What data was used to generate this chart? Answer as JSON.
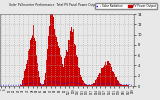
{
  "title": "Solar PV/Inverter Performance  Total PV Panel Power Output & Solar Radiation",
  "bg_color": "#e8e8e8",
  "plot_bg": "#e8e8e8",
  "grid_color": "#aaaaaa",
  "bar_color": "#cc0000",
  "line_color": "#0000ff",
  "ylim": [
    0,
    14
  ],
  "yticks": [
    0,
    2,
    4,
    6,
    8,
    10,
    12,
    14
  ],
  "bar_peaks": [
    0.05,
    0.05,
    0.05,
    0.05,
    0.05,
    0.05,
    0.05,
    0.05,
    0.05,
    0.05,
    0.05,
    0.05,
    0.05,
    0.05,
    0.05,
    0.05,
    0.05,
    0.05,
    0.05,
    0.05,
    0.05,
    0.05,
    0.05,
    0.05,
    0.05,
    0.05,
    0.05,
    0.05,
    0.05,
    0.05,
    0.1,
    0.2,
    0.5,
    1.0,
    1.5,
    2.0,
    2.5,
    3.0,
    3.5,
    4.0,
    4.5,
    5.0,
    5.8,
    6.5,
    7.0,
    7.5,
    8.5,
    9.0,
    9.5,
    10.0,
    9.5,
    8.5,
    7.5,
    6.5,
    5.5,
    4.5,
    3.5,
    2.5,
    1.5,
    0.8,
    0.5,
    0.3,
    0.2,
    0.2,
    0.3,
    0.5,
    1.0,
    2.0,
    3.0,
    4.5,
    6.0,
    7.5,
    9.0,
    10.5,
    12.0,
    13.5,
    13.8,
    14.0,
    13.5,
    12.5,
    11.0,
    10.0,
    9.0,
    8.5,
    8.0,
    7.5,
    7.0,
    6.5,
    6.0,
    5.5,
    5.0,
    4.5,
    4.0,
    3.5,
    3.5,
    4.0,
    4.5,
    5.0,
    5.5,
    6.0,
    6.5,
    7.0,
    7.5,
    8.0,
    8.5,
    9.0,
    9.5,
    10.0,
    10.5,
    10.0,
    9.0,
    8.0,
    7.0,
    6.0,
    5.0,
    4.5,
    4.0,
    3.5,
    3.0,
    2.5,
    2.0,
    1.5,
    1.2,
    1.0,
    0.8,
    0.6,
    0.5,
    0.4,
    0.3,
    0.2,
    0.15,
    0.1,
    0.1,
    0.1,
    0.1,
    0.1,
    0.15,
    0.2,
    0.3,
    0.4,
    0.5,
    0.6,
    0.8,
    1.0,
    1.2,
    1.5,
    1.8,
    2.0,
    2.2,
    2.4,
    2.6,
    2.8,
    3.0,
    3.2,
    3.4,
    3.5,
    3.6,
    3.7,
    3.8,
    3.9,
    4.0,
    4.0,
    3.9,
    3.8,
    3.7,
    3.5,
    3.3,
    3.1,
    2.9,
    2.7,
    2.5,
    2.2,
    2.0,
    1.8,
    1.5,
    1.2,
    1.0,
    0.8,
    0.6,
    0.5,
    0.4,
    0.3,
    0.2,
    0.15,
    0.1,
    0.1,
    0.1,
    0.1,
    0.1,
    0.1,
    0.1,
    0.1,
    0.1,
    0.1,
    0.05,
    0.05,
    0.05,
    0.05,
    0.05,
    0.05
  ],
  "line_flat": 0.5,
  "n_xticks": 30
}
